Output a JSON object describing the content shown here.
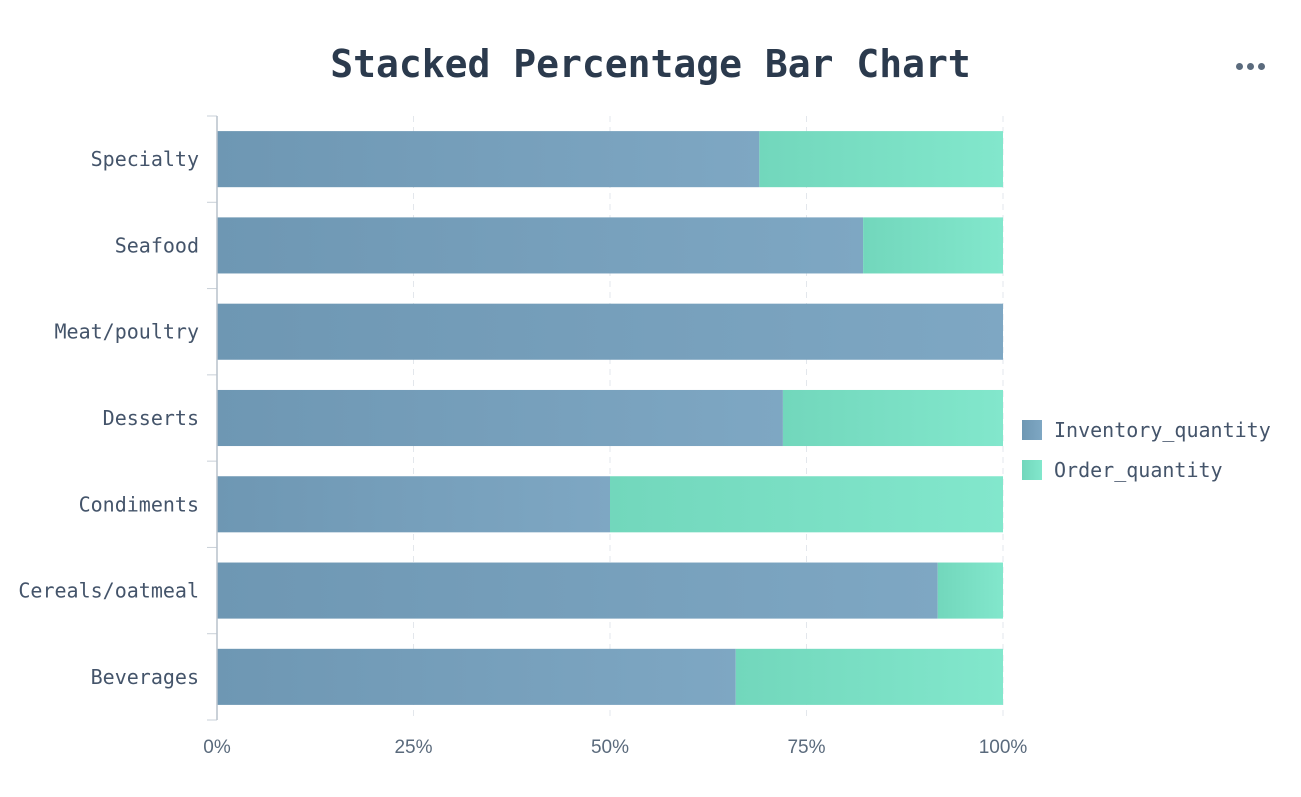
{
  "chart_data": {
    "type": "bar",
    "orientation": "horizontal",
    "stacking": "percent",
    "title": "Stacked Percentage Bar Chart",
    "categories": [
      "Beverages",
      "Cereals/oatmeal",
      "Condiments",
      "Desserts",
      "Meat/poultry",
      "Seafood",
      "Specialty"
    ],
    "series": [
      {
        "name": "Inventory_quantity",
        "color": "#7aa3bf",
        "values": [
          66,
          91.7,
          50,
          72,
          100,
          82.2,
          69
        ]
      },
      {
        "name": "Order_quantity",
        "color": "#7ee3c8",
        "values": [
          34,
          8.3,
          50,
          28,
          0,
          17.8,
          31
        ]
      }
    ],
    "x_ticks": [
      "0%",
      "25%",
      "50%",
      "75%",
      "100%"
    ],
    "xlim": [
      0,
      100
    ],
    "xlabel": "",
    "ylabel": "",
    "grid": "vertical dashed",
    "legend_position": "right"
  },
  "toolbar": {
    "more_icon": "more-horizontal-icon"
  }
}
